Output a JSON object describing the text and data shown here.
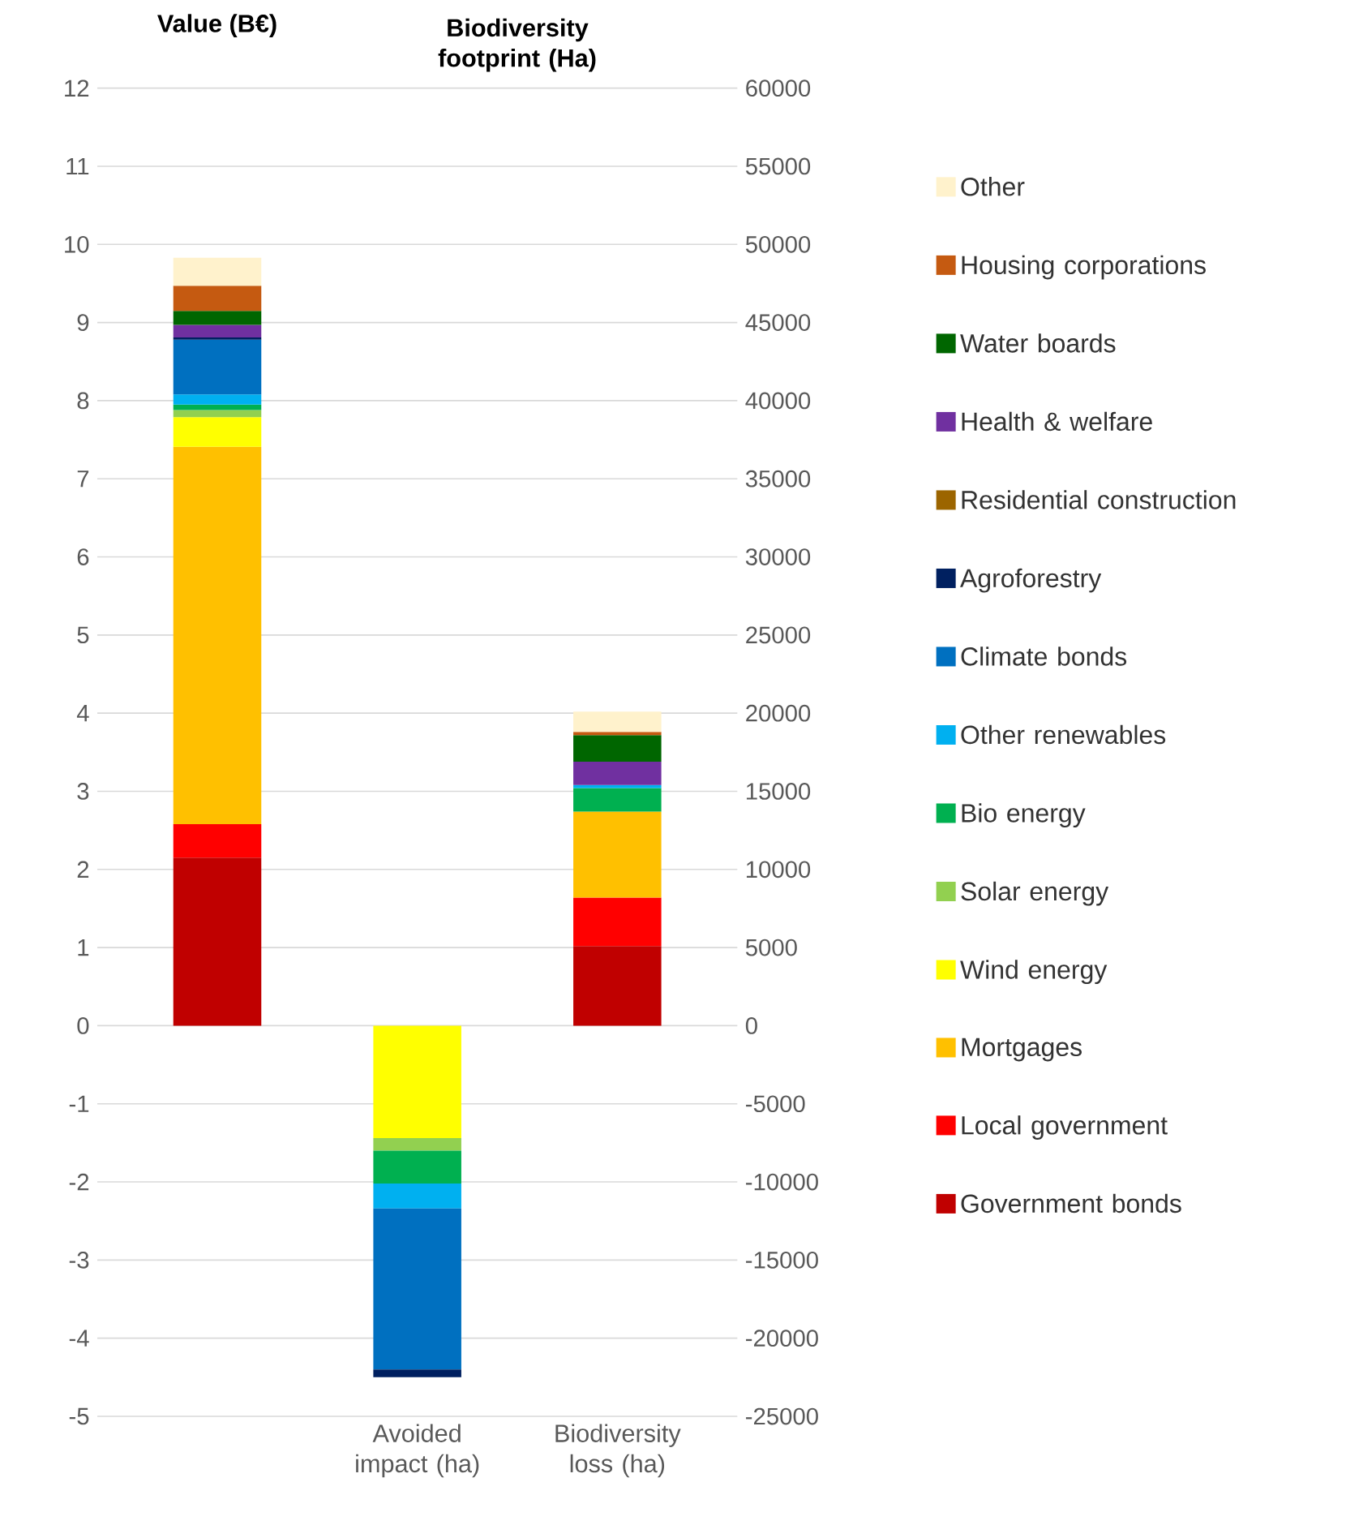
{
  "chart_data": {
    "type": "bar",
    "stacked": true,
    "categories": [
      null,
      "Avoided impact (ha)",
      "Biodiversity loss (ha)"
    ],
    "ylabel": "Value (B€)",
    "y2label": "Biodiversity footprint (Ha)",
    "ylim": [
      -5,
      12
    ],
    "yticks": [
      -5,
      -4,
      -3,
      -2,
      -1,
      0,
      1,
      2,
      3,
      4,
      5,
      6,
      7,
      8,
      9,
      10,
      11,
      12
    ],
    "y2lim": [
      -25000,
      60000
    ],
    "y2ticks": [
      -25000,
      -20000,
      -15000,
      -10000,
      -5000,
      0,
      5000,
      10000,
      15000,
      20000,
      25000,
      30000,
      35000,
      40000,
      45000,
      50000,
      55000,
      60000
    ],
    "grid": "y",
    "legend": "right",
    "series": [
      {
        "name": "Government bonds",
        "color": "#c00000",
        "values": [
          2.15,
          null,
          null
        ]
      },
      {
        "name": "Local government",
        "color": "#ff0000",
        "values": [
          0.43,
          null,
          null
        ]
      },
      {
        "name": "Mortgages",
        "color": "#ffc000",
        "values": [
          4.83,
          null,
          null
        ]
      },
      {
        "name": "Wind energy",
        "color": "#ffff00",
        "values": [
          0.38,
          null,
          null
        ]
      },
      {
        "name": "Solar energy",
        "color": "#92d050",
        "values": [
          0.09,
          null,
          null
        ]
      },
      {
        "name": "Bio energy",
        "color": "#00b050",
        "values": [
          0.07,
          null,
          null
        ]
      },
      {
        "name": "Other renewables",
        "color": "#00b0f0",
        "values": [
          0.13,
          null,
          null
        ]
      },
      {
        "name": "Climate bonds",
        "color": "#0070c0",
        "values": [
          0.7,
          null,
          null
        ]
      },
      {
        "name": "Agroforestry",
        "color": "#002060",
        "values": [
          0.03,
          null,
          null
        ]
      },
      {
        "name": "Residential construction",
        "color": "#9c6500",
        "values": [
          null,
          null,
          null
        ]
      },
      {
        "name": "Health & welfare",
        "color": "#7030a0",
        "values": [
          0.16,
          null,
          null
        ]
      },
      {
        "name": "Water boards",
        "color": "#006600",
        "values": [
          0.18,
          null,
          null
        ]
      },
      {
        "name": "Housing corporations",
        "color": "#c55a11",
        "values": [
          0.32,
          null,
          null
        ]
      },
      {
        "name": "Other",
        "color": "#fff2cc",
        "values": [
          0.36,
          null,
          null
        ]
      },
      {
        "color": "#c00000",
        "axis": "y2",
        "values": [
          null,
          null,
          5100
        ]
      },
      {
        "color": "#ff0000",
        "axis": "y2",
        "values": [
          null,
          null,
          3100
        ]
      },
      {
        "color": "#ffc000",
        "axis": "y2",
        "values": [
          null,
          null,
          5500
        ]
      },
      {
        "color": "#ffff00",
        "axis": "y2",
        "values": [
          null,
          -7200,
          null
        ]
      },
      {
        "color": "#92d050",
        "axis": "y2",
        "values": [
          null,
          -800,
          null
        ]
      },
      {
        "color": "#00b050",
        "axis": "y2",
        "values": [
          null,
          -2100,
          1500
        ]
      },
      {
        "color": "#00b0f0",
        "axis": "y2",
        "values": [
          null,
          -1600,
          200
        ]
      },
      {
        "color": "#0070c0",
        "axis": "y2",
        "values": [
          null,
          -10300,
          null
        ]
      },
      {
        "color": "#002060",
        "axis": "y2",
        "values": [
          null,
          -500,
          null
        ]
      },
      {
        "color": "#7030a0",
        "axis": "y2",
        "values": [
          null,
          null,
          1500
        ]
      },
      {
        "color": "#006600",
        "axis": "y2",
        "values": [
          null,
          null,
          1700
        ]
      },
      {
        "color": "#c55a11",
        "axis": "y2",
        "values": [
          null,
          null,
          200
        ]
      },
      {
        "color": "#fff2cc",
        "axis": "y2",
        "values": [
          null,
          null,
          1300
        ]
      }
    ]
  }
}
